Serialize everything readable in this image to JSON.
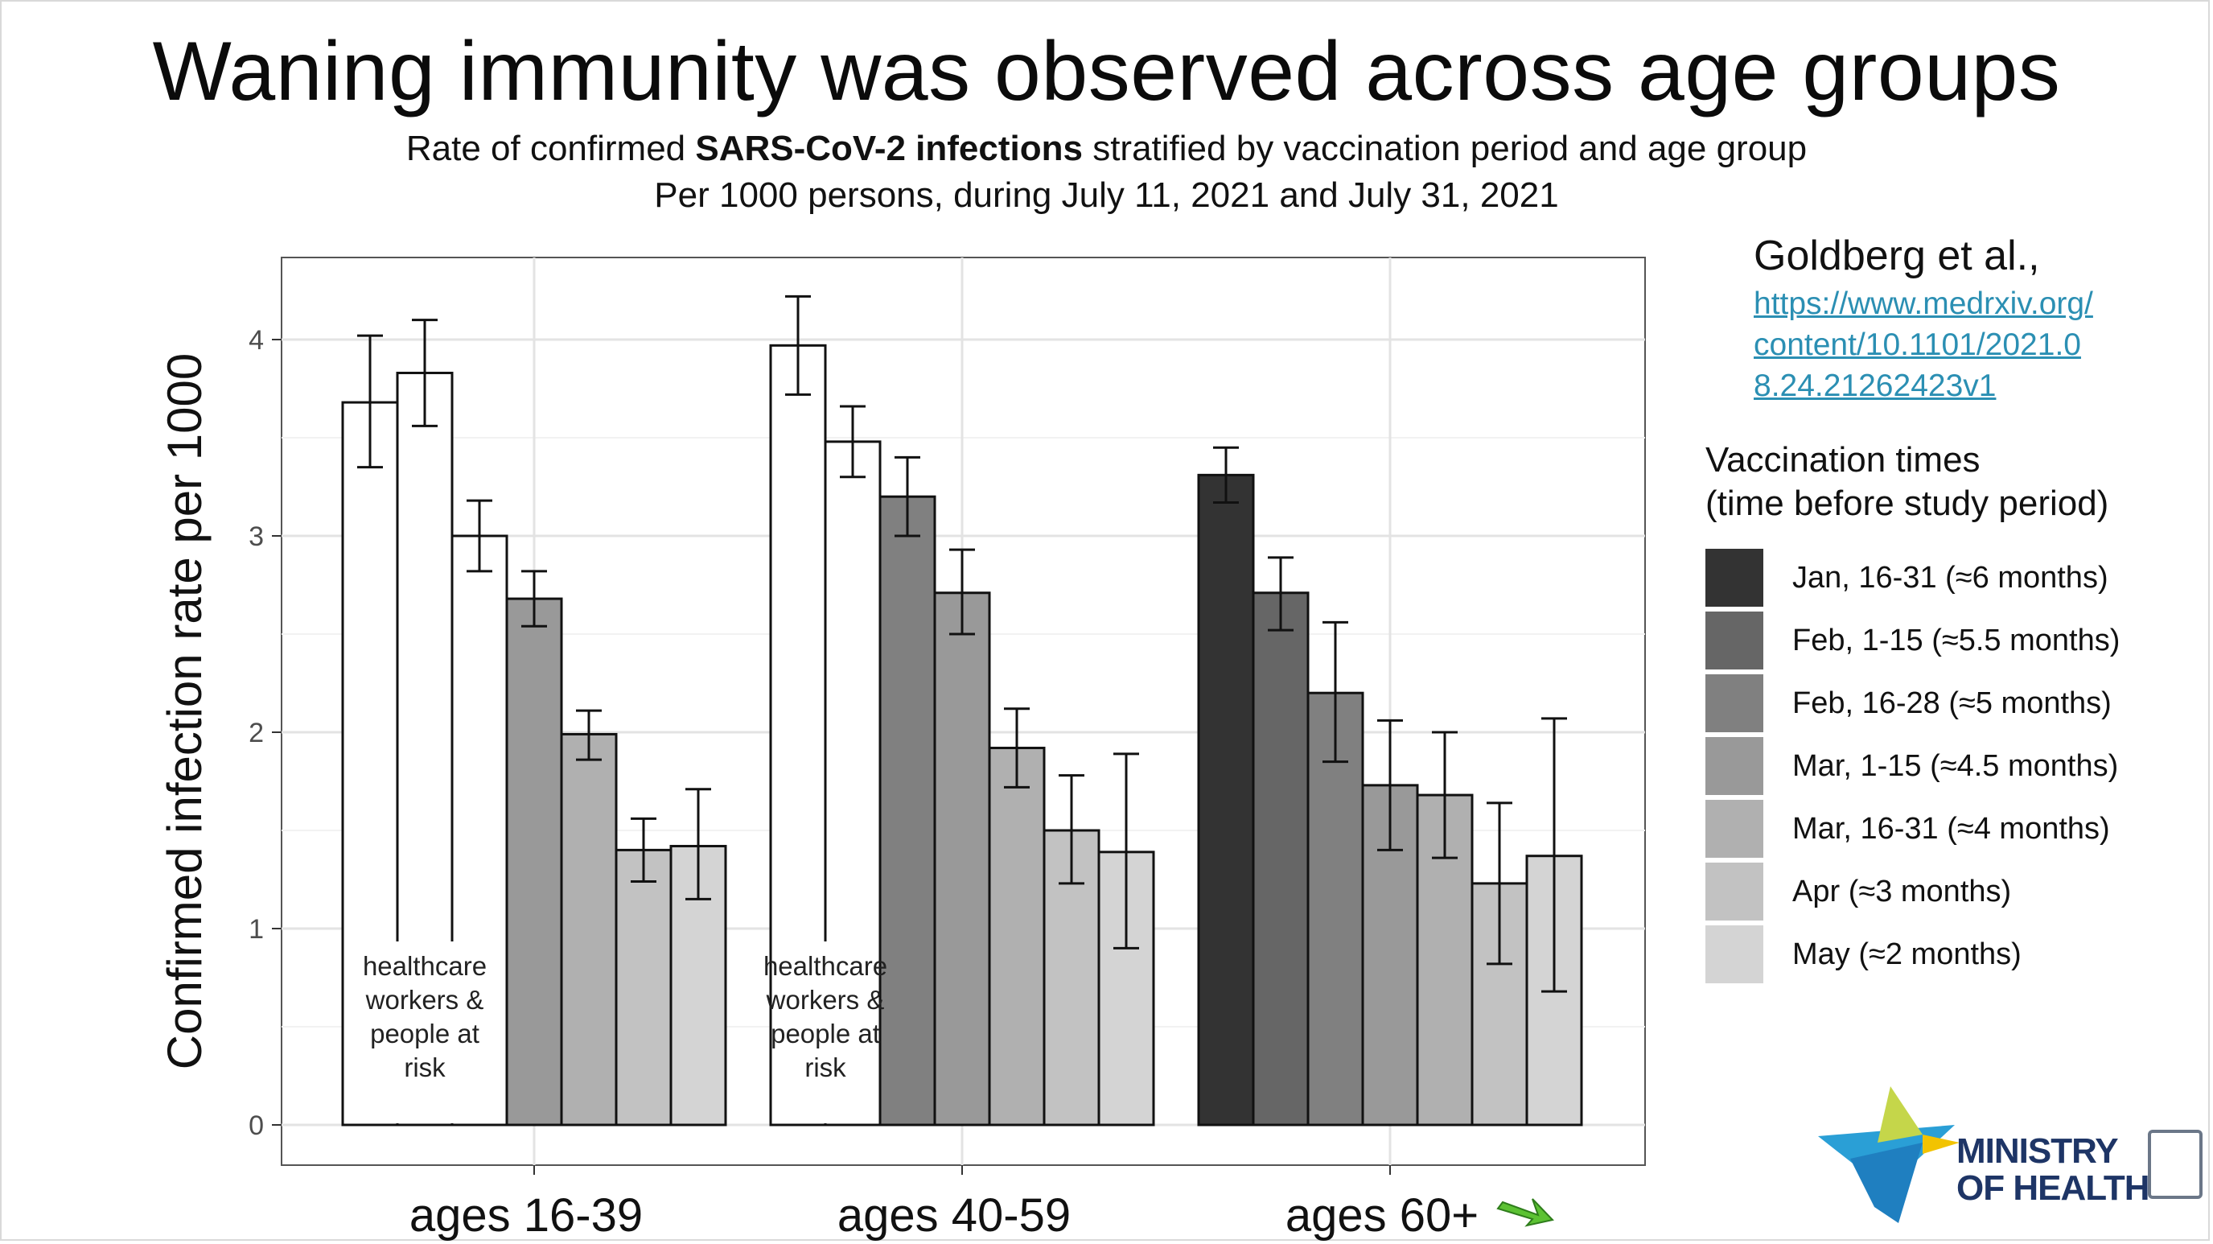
{
  "slide": {
    "title": "Waning immunity was observed across age groups",
    "subtitle_line1_pre": "Rate of confirmed ",
    "subtitle_line1_bold": "SARS-CoV-2 infections",
    "subtitle_line1_post": " stratified by vaccination period and age group",
    "subtitle_line2": "Per 1000 persons, during July 11, 2021 and July 31, 2021"
  },
  "citation": {
    "author": "Goldberg et al.,",
    "link": "https://www.medrxiv.org/content/10.1101/2021.08.24.21262423v1"
  },
  "legend": {
    "title_line1": "Vaccination times",
    "title_line2": "(time before study period)",
    "items": [
      {
        "label": "Jan, 16-31 (≈6 months)",
        "color": "#333333"
      },
      {
        "label": "Feb, 1-15 (≈5.5 months)",
        "color": "#666666"
      },
      {
        "label": "Feb, 16-28 (≈5 months)",
        "color": "#808080"
      },
      {
        "label": "Mar, 1-15 (≈4.5 months)",
        "color": "#999999"
      },
      {
        "label": "Mar, 16-31 (≈4 months)",
        "color": "#b0b0b0"
      },
      {
        "label": "Apr (≈3 months)",
        "color": "#c2c2c2"
      },
      {
        "label": "May (≈2 months)",
        "color": "#d4d4d4"
      }
    ]
  },
  "logo": {
    "line1": "MINISTRY",
    "line2": "OF HEALTH"
  },
  "chart_data": {
    "type": "bar",
    "ylabel": "Confirmed infection rate per 1000",
    "xlabel": "",
    "ylim": [
      0,
      4.3
    ],
    "yticks": [
      0,
      1,
      2,
      3,
      4
    ],
    "grid": true,
    "groups": [
      {
        "label": "ages 16-39",
        "annotation": "healthcare workers & people at risk",
        "bars": [
          {
            "period": "Jan, 16-31",
            "value": 3.68,
            "ci_low": 3.35,
            "ci_high": 4.02,
            "fill": "#ffffff"
          },
          {
            "period": "Feb, 1-15",
            "value": 3.83,
            "ci_low": 3.56,
            "ci_high": 4.1,
            "fill": "#ffffff"
          },
          {
            "period": "Feb, 16-28",
            "value": 3.0,
            "ci_low": 2.82,
            "ci_high": 3.18,
            "fill": "#ffffff"
          },
          {
            "period": "Mar, 1-15",
            "value": 2.68,
            "ci_low": 2.54,
            "ci_high": 2.82,
            "fill": "#999999"
          },
          {
            "period": "Mar, 16-31",
            "value": 1.99,
            "ci_low": 1.86,
            "ci_high": 2.11,
            "fill": "#b0b0b0"
          },
          {
            "period": "Apr",
            "value": 1.4,
            "ci_low": 1.24,
            "ci_high": 1.56,
            "fill": "#c2c2c2"
          },
          {
            "period": "May",
            "value": 1.42,
            "ci_low": 1.15,
            "ci_high": 1.71,
            "fill": "#d4d4d4"
          }
        ]
      },
      {
        "label": "ages 40-59",
        "annotation": "healthcare workers & people at risk",
        "bars": [
          {
            "period": "Jan, 16-31",
            "value": 3.97,
            "ci_low": 3.72,
            "ci_high": 4.22,
            "fill": "#ffffff"
          },
          {
            "period": "Feb, 1-15",
            "value": 3.48,
            "ci_low": 3.3,
            "ci_high": 3.66,
            "fill": "#ffffff"
          },
          {
            "period": "Feb, 16-28",
            "value": 3.2,
            "ci_low": 3.0,
            "ci_high": 3.4,
            "fill": "#808080"
          },
          {
            "period": "Mar, 1-15",
            "value": 2.71,
            "ci_low": 2.5,
            "ci_high": 2.93,
            "fill": "#999999"
          },
          {
            "period": "Mar, 16-31",
            "value": 1.92,
            "ci_low": 1.72,
            "ci_high": 2.12,
            "fill": "#b0b0b0"
          },
          {
            "period": "Apr",
            "value": 1.5,
            "ci_low": 1.23,
            "ci_high": 1.78,
            "fill": "#c2c2c2"
          },
          {
            "period": "May",
            "value": 1.39,
            "ci_low": 0.9,
            "ci_high": 1.89,
            "fill": "#d4d4d4"
          }
        ]
      },
      {
        "label": "ages 60+",
        "annotation": "",
        "bars": [
          {
            "period": "Jan, 16-31",
            "value": 3.31,
            "ci_low": 3.17,
            "ci_high": 3.45,
            "fill": "#333333"
          },
          {
            "period": "Feb, 1-15",
            "value": 2.71,
            "ci_low": 2.52,
            "ci_high": 2.89,
            "fill": "#666666"
          },
          {
            "period": "Feb, 16-28",
            "value": 2.2,
            "ci_low": 1.85,
            "ci_high": 2.56,
            "fill": "#808080"
          },
          {
            "period": "Mar, 1-15",
            "value": 1.73,
            "ci_low": 1.4,
            "ci_high": 2.06,
            "fill": "#999999"
          },
          {
            "period": "Mar, 16-31",
            "value": 1.68,
            "ci_low": 1.36,
            "ci_high": 2.0,
            "fill": "#b0b0b0"
          },
          {
            "period": "Apr",
            "value": 1.23,
            "ci_low": 0.82,
            "ci_high": 1.64,
            "fill": "#c2c2c2"
          },
          {
            "period": "May",
            "value": 1.37,
            "ci_low": 0.68,
            "ci_high": 2.07,
            "fill": "#d4d4d4"
          }
        ]
      }
    ]
  }
}
